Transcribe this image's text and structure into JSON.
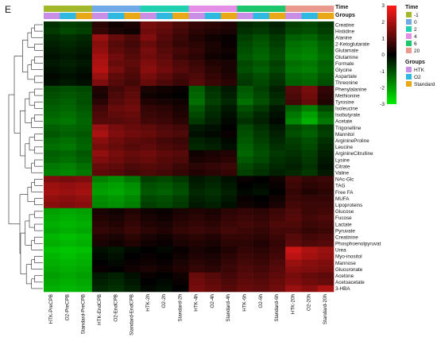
{
  "panel_label": "E",
  "chart_data": {
    "type": "heatmap",
    "title": "",
    "rows": [
      "Creatine",
      "Histidine",
      "Alanine",
      "2-Ketoglutarate",
      "Glutamate",
      "Glutamine",
      "Formate",
      "Glycine",
      "Aspartate",
      "Threonine",
      "Phenylalanine",
      "Methionine",
      "Tyrosine",
      "Isoleucine",
      "Isobutyrate",
      "Acetate",
      "Trigonelline",
      "Mannitol",
      "ArginineProline",
      "Leucine",
      "ArginineCitrulline",
      "Lysine",
      "Citrate",
      "Valine",
      "NAc-Glc",
      "TAG",
      "Free FA",
      "MUFA",
      "Lipoproteins",
      "Glucose",
      "Fucose",
      "Lactate",
      "Pyruvate",
      "Creatinine",
      "Phosphoenolpyruvat",
      "Urea",
      "Myo-inositol",
      "Mannose",
      "Glucuronate",
      "Acetone",
      "Acetoacetate",
      "3-HBA"
    ],
    "columns": [
      "HTK-PreCPB",
      "O2-PreCPB",
      "Standard-PreCPB",
      "HTK-EndCPB",
      "O2-EndCPB",
      "Standard-EndCPB",
      "HTK-2h",
      "O2-2h",
      "Standard-2h",
      "HTK-4h",
      "O2-4h",
      "Standard-4h",
      "HTK-6h",
      "O2-6h",
      "Standard-6h",
      "HTK-20h",
      "O2-20h",
      "Standard-20h"
    ],
    "values": [
      [
        -0.6,
        -0.8,
        -0.7,
        0.5,
        0.2,
        0.3,
        1.4,
        1.2,
        0.9,
        0.6,
        0.5,
        0.4,
        -0.5,
        -0.6,
        -0.4,
        -0.8,
        -0.9,
        -0.7
      ],
      [
        -0.7,
        -0.9,
        -0.8,
        0.6,
        0.3,
        0.2,
        1.3,
        1.1,
        0.8,
        0.5,
        0.4,
        0.3,
        -0.6,
        -0.7,
        -0.5,
        -0.9,
        -1.0,
        -0.8
      ],
      [
        -0.5,
        -0.6,
        -0.5,
        1.8,
        1.2,
        0.9,
        1.5,
        1.0,
        0.7,
        0.4,
        0.2,
        0.1,
        -0.8,
        -1.0,
        -0.7,
        -1.2,
        -1.3,
        -1.0
      ],
      [
        -0.4,
        -0.5,
        -0.4,
        1.6,
        1.0,
        0.8,
        1.2,
        0.9,
        0.6,
        0.5,
        0.3,
        0.1,
        -0.9,
        -1.1,
        -0.8,
        -1.4,
        -1.5,
        -1.2
      ],
      [
        -0.3,
        -0.4,
        -0.3,
        1.7,
        1.1,
        0.9,
        1.4,
        1.0,
        0.8,
        0.6,
        0.3,
        0.2,
        -1.0,
        -1.2,
        -0.9,
        -1.5,
        -1.6,
        -1.3
      ],
      [
        -0.2,
        -0.3,
        -0.2,
        1.9,
        1.3,
        1.0,
        1.3,
        1.1,
        0.7,
        0.5,
        0.2,
        0.1,
        -1.1,
        -1.3,
        -1.0,
        -1.6,
        -1.7,
        -1.4
      ],
      [
        -0.3,
        -0.4,
        -0.3,
        2.0,
        1.2,
        1.1,
        1.5,
        1.2,
        0.9,
        0.7,
        0.4,
        0.3,
        -0.9,
        -1.1,
        -0.8,
        -1.4,
        -1.5,
        -1.2
      ],
      [
        -0.2,
        -0.3,
        -0.2,
        2.1,
        1.4,
        1.0,
        1.6,
        1.3,
        1.0,
        0.8,
        0.5,
        0.3,
        -1.0,
        -1.2,
        -0.9,
        -1.5,
        -1.6,
        -1.3
      ],
      [
        -0.1,
        -0.2,
        -0.1,
        1.8,
        1.1,
        0.9,
        1.4,
        1.1,
        0.8,
        0.9,
        0.6,
        0.4,
        -0.8,
        -1.0,
        -0.7,
        -1.3,
        -1.4,
        -1.1
      ],
      [
        -0.2,
        -0.3,
        -0.2,
        1.5,
        1.0,
        0.8,
        1.2,
        0.9,
        0.7,
        1.0,
        0.7,
        0.5,
        -0.7,
        -0.9,
        -0.6,
        -1.2,
        -1.3,
        -1.0
      ],
      [
        -0.9,
        -1.0,
        -0.9,
        0.4,
        0.8,
        1.0,
        0.3,
        0.2,
        0.1,
        -1.2,
        -0.6,
        -0.3,
        -1.1,
        -0.8,
        -0.4,
        1.0,
        1.4,
        0.6
      ],
      [
        -1.0,
        -1.1,
        -1.0,
        0.3,
        0.9,
        1.1,
        0.2,
        0.1,
        0.0,
        -1.3,
        -0.7,
        -0.4,
        -1.2,
        -0.9,
        -0.5,
        0.9,
        1.3,
        0.5
      ],
      [
        -1.1,
        -1.2,
        -1.0,
        0.5,
        1.0,
        1.2,
        0.4,
        0.3,
        0.2,
        -1.4,
        -0.8,
        -0.5,
        -1.4,
        -1.0,
        -0.6,
        0.8,
        1.2,
        0.4
      ],
      [
        -1.2,
        -1.3,
        -1.1,
        0.8,
        1.2,
        1.3,
        0.6,
        0.5,
        0.3,
        -1.1,
        -0.6,
        -0.3,
        -1.0,
        -0.7,
        -0.3,
        -1.2,
        -1.6,
        -0.9
      ],
      [
        -1.3,
        -1.4,
        -1.2,
        0.9,
        1.1,
        1.2,
        0.7,
        0.6,
        0.4,
        -0.9,
        -0.5,
        -0.2,
        -0.8,
        -0.5,
        -0.2,
        -1.5,
        -2.0,
        -1.3
      ],
      [
        -1.4,
        -1.5,
        -1.3,
        1.0,
        1.0,
        1.1,
        0.8,
        0.7,
        0.5,
        -0.7,
        -0.4,
        -0.1,
        -0.6,
        -0.4,
        -0.1,
        -1.7,
        -2.2,
        -1.5
      ],
      [
        -1.2,
        -1.3,
        -1.2,
        1.8,
        1.4,
        1.2,
        1.1,
        0.9,
        0.8,
        -0.3,
        -0.2,
        0.0,
        -0.9,
        -0.6,
        -0.3,
        -0.9,
        -1.1,
        -0.7
      ],
      [
        -1.1,
        -1.2,
        -1.1,
        2.0,
        1.5,
        1.3,
        1.2,
        1.0,
        0.9,
        -0.2,
        -0.1,
        0.1,
        -1.0,
        -0.7,
        -0.4,
        -1.0,
        -1.2,
        -0.8
      ],
      [
        -1.3,
        -1.4,
        -1.2,
        1.6,
        1.3,
        1.1,
        1.0,
        0.8,
        0.7,
        -0.4,
        -0.3,
        -0.1,
        -1.1,
        -0.8,
        -0.5,
        -0.8,
        -1.0,
        -0.6
      ],
      [
        -1.4,
        -1.5,
        -1.3,
        1.4,
        1.2,
        1.0,
        1.1,
        0.9,
        0.8,
        -0.5,
        -0.4,
        -0.2,
        -1.2,
        -0.9,
        -0.6,
        -0.7,
        -0.9,
        -0.5
      ],
      [
        -1.2,
        -1.3,
        -1.1,
        1.7,
        1.4,
        1.2,
        1.3,
        1.1,
        1.0,
        0.2,
        0.3,
        0.4,
        -1.3,
        -1.0,
        -0.7,
        -0.6,
        -0.8,
        -0.4
      ],
      [
        -1.3,
        -1.4,
        -1.2,
        1.5,
        1.3,
        1.1,
        1.2,
        1.0,
        0.9,
        0.3,
        0.4,
        0.5,
        -1.1,
        -0.9,
        -0.6,
        -0.5,
        -0.7,
        -0.3
      ],
      [
        -1.5,
        -1.6,
        -1.4,
        1.2,
        1.1,
        0.9,
        1.0,
        0.9,
        0.7,
        0.5,
        0.6,
        0.7,
        -0.9,
        -0.7,
        -0.5,
        -0.4,
        -0.6,
        -0.2
      ],
      [
        -1.6,
        -1.7,
        -1.5,
        1.1,
        1.0,
        0.8,
        0.9,
        0.8,
        0.6,
        0.4,
        0.5,
        0.6,
        -0.8,
        -0.6,
        -0.4,
        -0.5,
        -0.7,
        -0.3
      ],
      [
        1.5,
        1.4,
        1.5,
        -1.6,
        -1.8,
        -1.5,
        -0.8,
        -0.9,
        -0.7,
        -0.3,
        -0.4,
        -0.2,
        0.1,
        0.0,
        0.2,
        0.8,
        0.6,
        0.7
      ],
      [
        1.8,
        1.7,
        1.8,
        -1.9,
        -2.0,
        -1.8,
        -1.0,
        -1.1,
        -0.9,
        -0.4,
        -0.5,
        -0.3,
        0.0,
        -0.1,
        0.1,
        0.7,
        0.5,
        0.6
      ],
      [
        1.9,
        1.8,
        1.9,
        -2.0,
        -2.1,
        -1.9,
        -1.1,
        -1.2,
        -1.0,
        -0.5,
        -0.6,
        -0.4,
        -0.1,
        -0.2,
        0.0,
        0.6,
        0.4,
        0.5
      ],
      [
        1.7,
        1.6,
        1.7,
        -1.8,
        -1.9,
        -1.7,
        -0.9,
        -1.0,
        -0.8,
        -0.4,
        -0.5,
        -0.3,
        0.1,
        0.0,
        0.2,
        0.7,
        0.6,
        0.6
      ],
      [
        1.6,
        1.5,
        1.6,
        -1.7,
        -1.8,
        -1.6,
        -0.8,
        -0.9,
        -0.7,
        -0.3,
        -0.4,
        -0.2,
        0.2,
        0.1,
        0.3,
        0.8,
        0.7,
        0.7
      ],
      [
        -2.0,
        -2.1,
        -2.0,
        0.3,
        0.2,
        0.4,
        0.2,
        0.1,
        0.3,
        0.4,
        0.3,
        0.5,
        0.6,
        0.5,
        0.7,
        0.9,
        0.7,
        0.8
      ],
      [
        -2.1,
        -2.2,
        -2.1,
        0.4,
        0.3,
        0.5,
        0.3,
        0.2,
        0.4,
        0.5,
        0.4,
        0.6,
        0.7,
        0.6,
        0.8,
        1.0,
        0.8,
        0.9
      ],
      [
        -2.2,
        -2.3,
        -2.2,
        0.5,
        0.4,
        0.6,
        0.4,
        0.3,
        0.5,
        0.6,
        0.5,
        0.7,
        0.8,
        0.7,
        0.9,
        0.9,
        0.7,
        0.8
      ],
      [
        -2.1,
        -2.2,
        -2.1,
        0.6,
        0.5,
        0.7,
        0.5,
        0.4,
        0.6,
        0.7,
        0.6,
        0.8,
        0.7,
        0.6,
        0.8,
        0.8,
        0.6,
        0.7
      ],
      [
        -2.3,
        -2.4,
        -2.3,
        0.4,
        0.3,
        0.5,
        0.3,
        0.2,
        0.4,
        0.5,
        0.4,
        0.6,
        0.6,
        0.5,
        0.7,
        1.0,
        0.8,
        0.9
      ],
      [
        -2.2,
        -2.3,
        -2.2,
        0.3,
        0.2,
        0.4,
        0.2,
        0.1,
        0.3,
        0.4,
        0.3,
        0.5,
        0.5,
        0.4,
        0.6,
        1.1,
        0.9,
        1.0
      ],
      [
        -2.4,
        -2.5,
        -2.4,
        -0.2,
        -0.3,
        -0.1,
        0.0,
        -0.1,
        0.1,
        0.3,
        0.2,
        0.4,
        0.6,
        0.5,
        0.7,
        2.4,
        2.0,
        1.8
      ],
      [
        -2.3,
        -2.4,
        -2.3,
        -0.1,
        -0.2,
        0.0,
        0.1,
        0.0,
        0.2,
        0.4,
        0.3,
        0.5,
        0.7,
        0.6,
        0.8,
        2.2,
        1.9,
        1.7
      ],
      [
        -2.2,
        -2.3,
        -2.2,
        0.0,
        -0.1,
        0.1,
        0.2,
        0.1,
        0.3,
        0.5,
        0.4,
        0.6,
        0.8,
        0.7,
        0.9,
        1.8,
        1.6,
        1.5
      ],
      [
        -2.1,
        -2.2,
        -2.1,
        0.1,
        0.0,
        0.2,
        0.3,
        0.2,
        0.4,
        0.6,
        0.5,
        0.7,
        0.9,
        0.8,
        1.0,
        1.6,
        1.5,
        1.4
      ],
      [
        -2.0,
        -2.1,
        -2.0,
        -0.3,
        -0.4,
        -0.2,
        0.1,
        0.0,
        0.2,
        1.2,
        1.0,
        0.8,
        1.0,
        0.9,
        1.1,
        1.4,
        1.2,
        1.1
      ],
      [
        -2.1,
        -2.2,
        -2.1,
        -0.4,
        -0.5,
        -0.3,
        0.0,
        -0.1,
        0.1,
        1.3,
        1.1,
        0.9,
        1.1,
        1.0,
        1.2,
        1.5,
        1.3,
        1.2
      ],
      [
        -2.2,
        -2.3,
        -2.2,
        -0.5,
        -0.6,
        -0.4,
        -0.1,
        -0.2,
        0.0,
        1.4,
        1.2,
        1.0,
        1.2,
        1.1,
        1.3,
        1.8,
        1.6,
        2.0
      ]
    ],
    "color_scale": {
      "min": -3,
      "max": 3,
      "ticks": [
        3,
        2,
        1,
        0,
        -1,
        -2,
        -3
      ],
      "low": "#00ee00",
      "mid": "#000000",
      "high": "#ff1a1a"
    },
    "annotations": {
      "time": {
        "label": "Time",
        "column_values": [
          "-1",
          "-1",
          "-1",
          "0",
          "0",
          "0",
          "2",
          "2",
          "2",
          "4",
          "4",
          "4",
          "6",
          "6",
          "6",
          "20",
          "20",
          "20"
        ],
        "legend": [
          {
            "label": "-1",
            "color": "#a4b82c"
          },
          {
            "label": "0",
            "color": "#6fa9e6"
          },
          {
            "label": "2",
            "color": "#1fd1b0"
          },
          {
            "label": "4",
            "color": "#e58ee8"
          },
          {
            "label": "6",
            "color": "#1cc66b"
          },
          {
            "label": "20",
            "color": "#e99a8c"
          }
        ]
      },
      "groups": {
        "label": "Groups",
        "column_values": [
          "HTK",
          "O2",
          "Standard",
          "HTK",
          "O2",
          "Standard",
          "HTK",
          "O2",
          "Standard",
          "HTK",
          "O2",
          "Standard",
          "HTK",
          "O2",
          "Standard",
          "HTK",
          "O2",
          "Standard"
        ],
        "legend": [
          {
            "label": "HTK",
            "color": "#c98fe6"
          },
          {
            "label": "O2",
            "color": "#2fb8e0"
          },
          {
            "label": "Standard",
            "color": "#e8a818"
          }
        ]
      }
    },
    "dendrogram": "row-clustered",
    "legend_position": "right"
  }
}
